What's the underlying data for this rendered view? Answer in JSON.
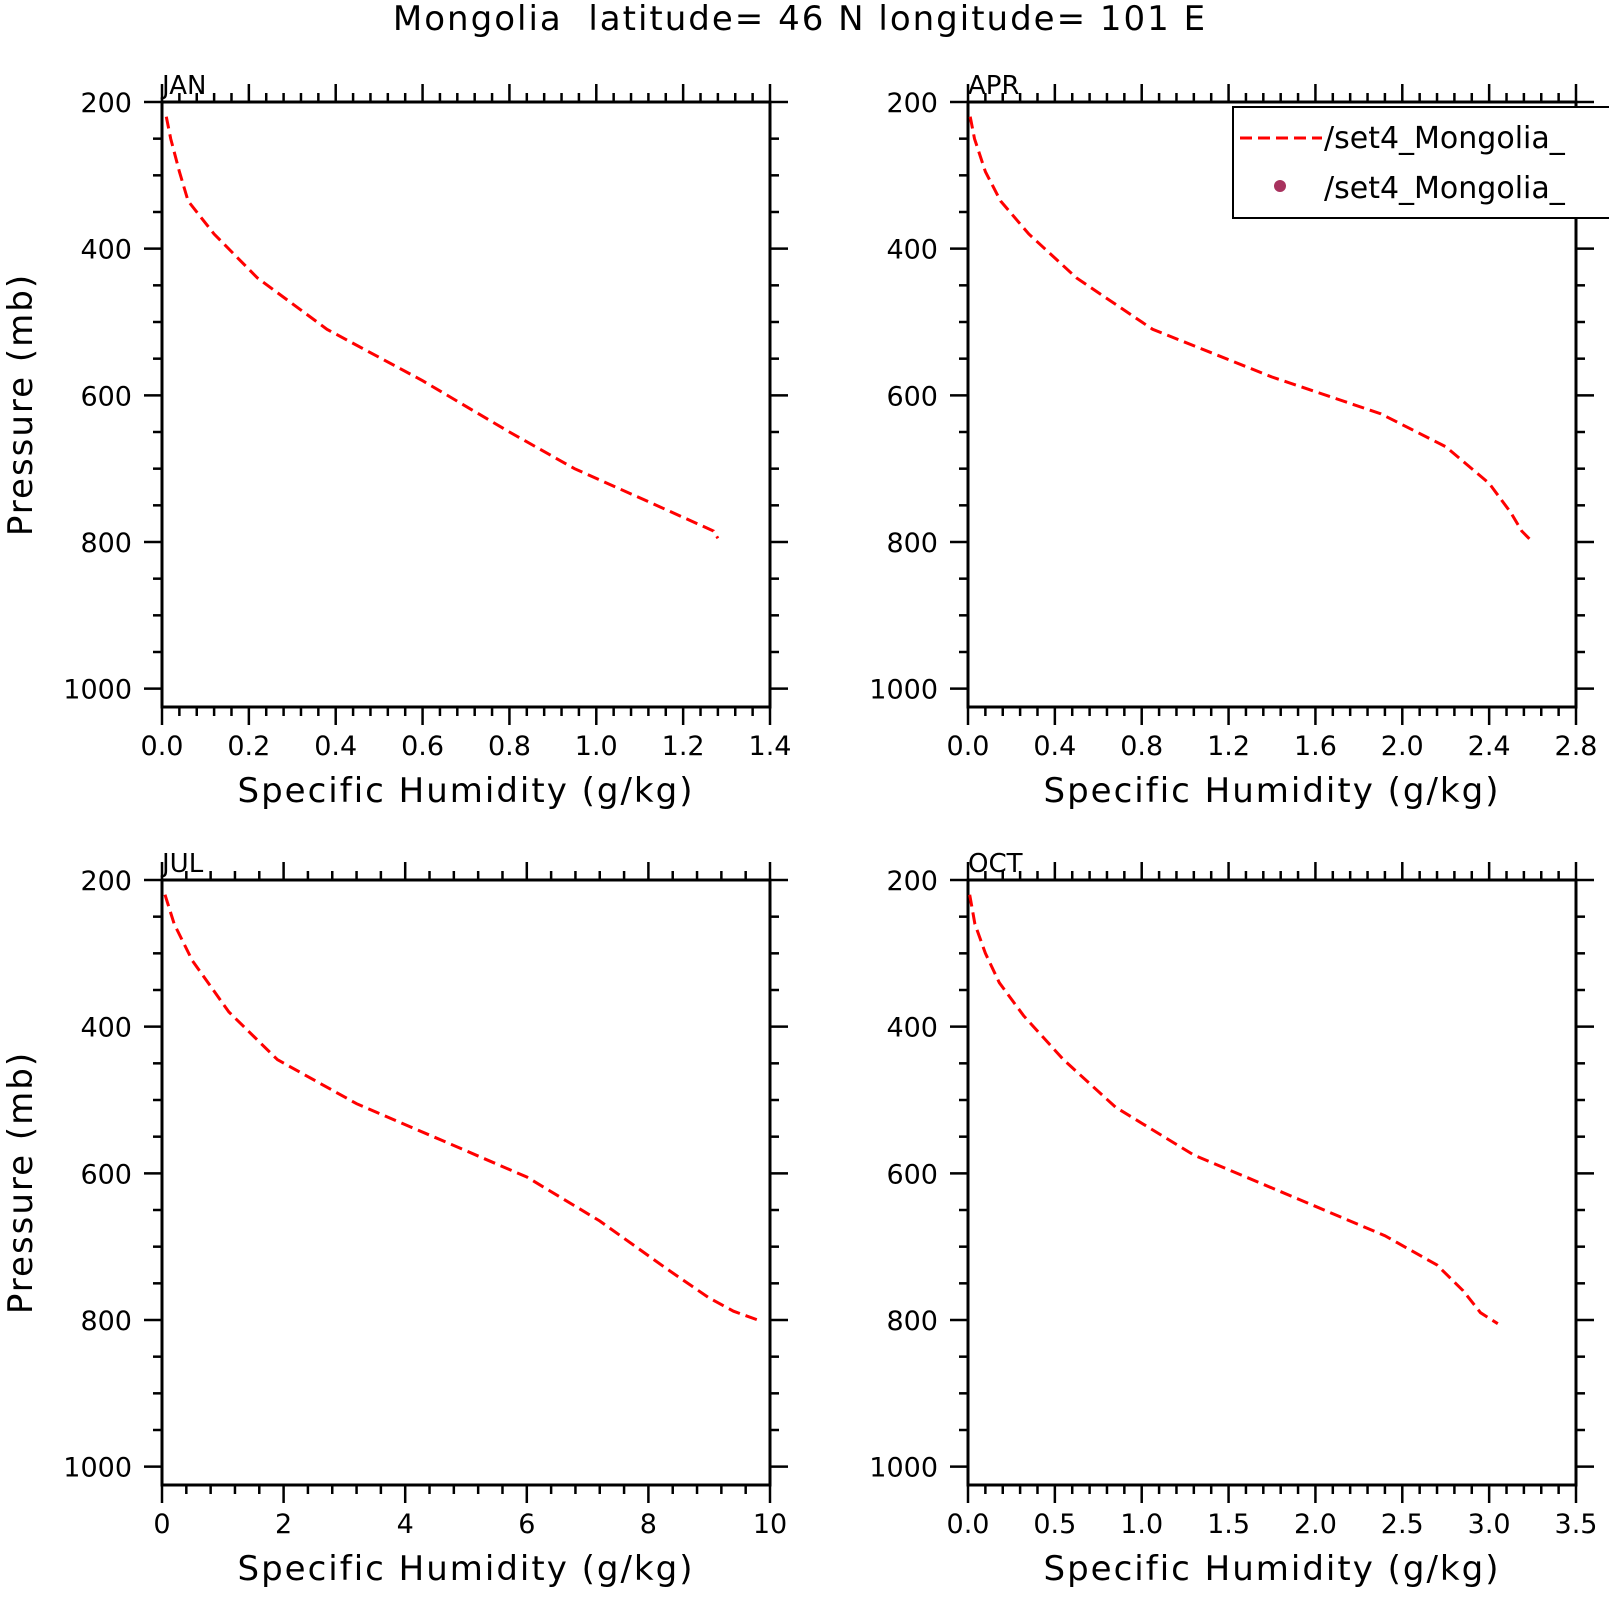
{
  "title": "Mongolia  latitude= 46 N longitude= 101 E",
  "legend": {
    "entries": [
      {
        "label": "/set4_Mongolia_",
        "style": "dashed-line",
        "color": "#ff0000"
      },
      {
        "label": "/set4_Mongolia_",
        "style": "dot-marker",
        "color": "#a8325e"
      }
    ]
  },
  "chart_data": [
    {
      "type": "line",
      "panel_label": "JAN",
      "xlabel": "Specific Humidity (g/kg)",
      "ylabel": "Pressure (mb)",
      "xlim": [
        0,
        1.4
      ],
      "ylim": [
        200,
        1025
      ],
      "y_reversed": true,
      "xticks": [
        "0.0",
        "0.2",
        "0.4",
        "0.6",
        "0.8",
        "1.0",
        "1.2",
        "1.4"
      ],
      "xtick_values": [
        0,
        0.2,
        0.4,
        0.6,
        0.8,
        1.0,
        1.2,
        1.4
      ],
      "yticks": [
        "200",
        "400",
        "600",
        "800",
        "1000"
      ],
      "ytick_values": [
        200,
        400,
        600,
        800,
        1000
      ],
      "series": [
        {
          "color": "#ff0000",
          "style": "dashed",
          "x": [
            0.01,
            0.02,
            0.04,
            0.06,
            0.12,
            0.22,
            0.38,
            0.6,
            0.8,
            0.95,
            1.12,
            1.27,
            1.28
          ],
          "y": [
            220,
            250,
            295,
            335,
            380,
            440,
            510,
            580,
            650,
            700,
            745,
            785,
            795
          ]
        }
      ]
    },
    {
      "type": "line",
      "panel_label": "APR",
      "xlabel": "Specific Humidity (g/kg)",
      "ylabel": "",
      "xlim": [
        0,
        2.8
      ],
      "ylim": [
        200,
        1025
      ],
      "y_reversed": true,
      "xticks": [
        "0.0",
        "0.4",
        "0.8",
        "1.2",
        "1.6",
        "2.0",
        "2.4",
        "2.8"
      ],
      "xtick_values": [
        0,
        0.4,
        0.8,
        1.2,
        1.6,
        2.0,
        2.4,
        2.8
      ],
      "yticks": [
        "200",
        "400",
        "600",
        "800",
        "1000"
      ],
      "ytick_values": [
        200,
        400,
        600,
        800,
        1000
      ],
      "series": [
        {
          "color": "#ff0000",
          "style": "dashed",
          "x": [
            0.01,
            0.03,
            0.08,
            0.15,
            0.28,
            0.5,
            0.85,
            1.4,
            1.9,
            2.2,
            2.4,
            2.5,
            2.55,
            2.6
          ],
          "y": [
            220,
            250,
            295,
            335,
            380,
            440,
            510,
            575,
            625,
            670,
            720,
            760,
            785,
            800
          ]
        }
      ]
    },
    {
      "type": "line",
      "panel_label": "JUL",
      "xlabel": "Specific Humidity (g/kg)",
      "ylabel": "Pressure (mb)",
      "xlim": [
        0,
        10
      ],
      "ylim": [
        200,
        1025
      ],
      "y_reversed": true,
      "xticks": [
        "0",
        "2",
        "4",
        "6",
        "8",
        "10"
      ],
      "xtick_values": [
        0,
        2,
        4,
        6,
        8,
        10
      ],
      "yticks": [
        "200",
        "400",
        "600",
        "800",
        "1000"
      ],
      "ytick_values": [
        200,
        400,
        600,
        800,
        1000
      ],
      "series": [
        {
          "color": "#ff0000",
          "style": "dashed",
          "x": [
            0.05,
            0.2,
            0.5,
            1.1,
            1.9,
            3.2,
            4.6,
            6.0,
            7.2,
            8.3,
            9.0,
            9.4,
            9.8
          ],
          "y": [
            220,
            260,
            310,
            380,
            445,
            505,
            555,
            605,
            665,
            730,
            770,
            788,
            800
          ]
        }
      ]
    },
    {
      "type": "line",
      "panel_label": "OCT",
      "xlabel": "Specific Humidity (g/kg)",
      "ylabel": "",
      "xlim": [
        0,
        3.5
      ],
      "ylim": [
        200,
        1025
      ],
      "y_reversed": true,
      "xticks": [
        "0.0",
        "0.5",
        "1.0",
        "1.5",
        "2.0",
        "2.5",
        "3.0",
        "3.5"
      ],
      "xtick_values": [
        0,
        0.5,
        1.0,
        1.5,
        2.0,
        2.5,
        3.0,
        3.5
      ],
      "yticks": [
        "200",
        "400",
        "600",
        "800",
        "1000"
      ],
      "ytick_values": [
        200,
        400,
        600,
        800,
        1000
      ],
      "series": [
        {
          "color": "#ff0000",
          "style": "dashed",
          "x": [
            0.01,
            0.04,
            0.1,
            0.18,
            0.32,
            0.55,
            0.85,
            1.3,
            1.9,
            2.4,
            2.7,
            2.85,
            2.95,
            3.05
          ],
          "y": [
            220,
            260,
            300,
            340,
            385,
            445,
            510,
            575,
            635,
            685,
            725,
            760,
            790,
            805
          ]
        }
      ]
    }
  ]
}
